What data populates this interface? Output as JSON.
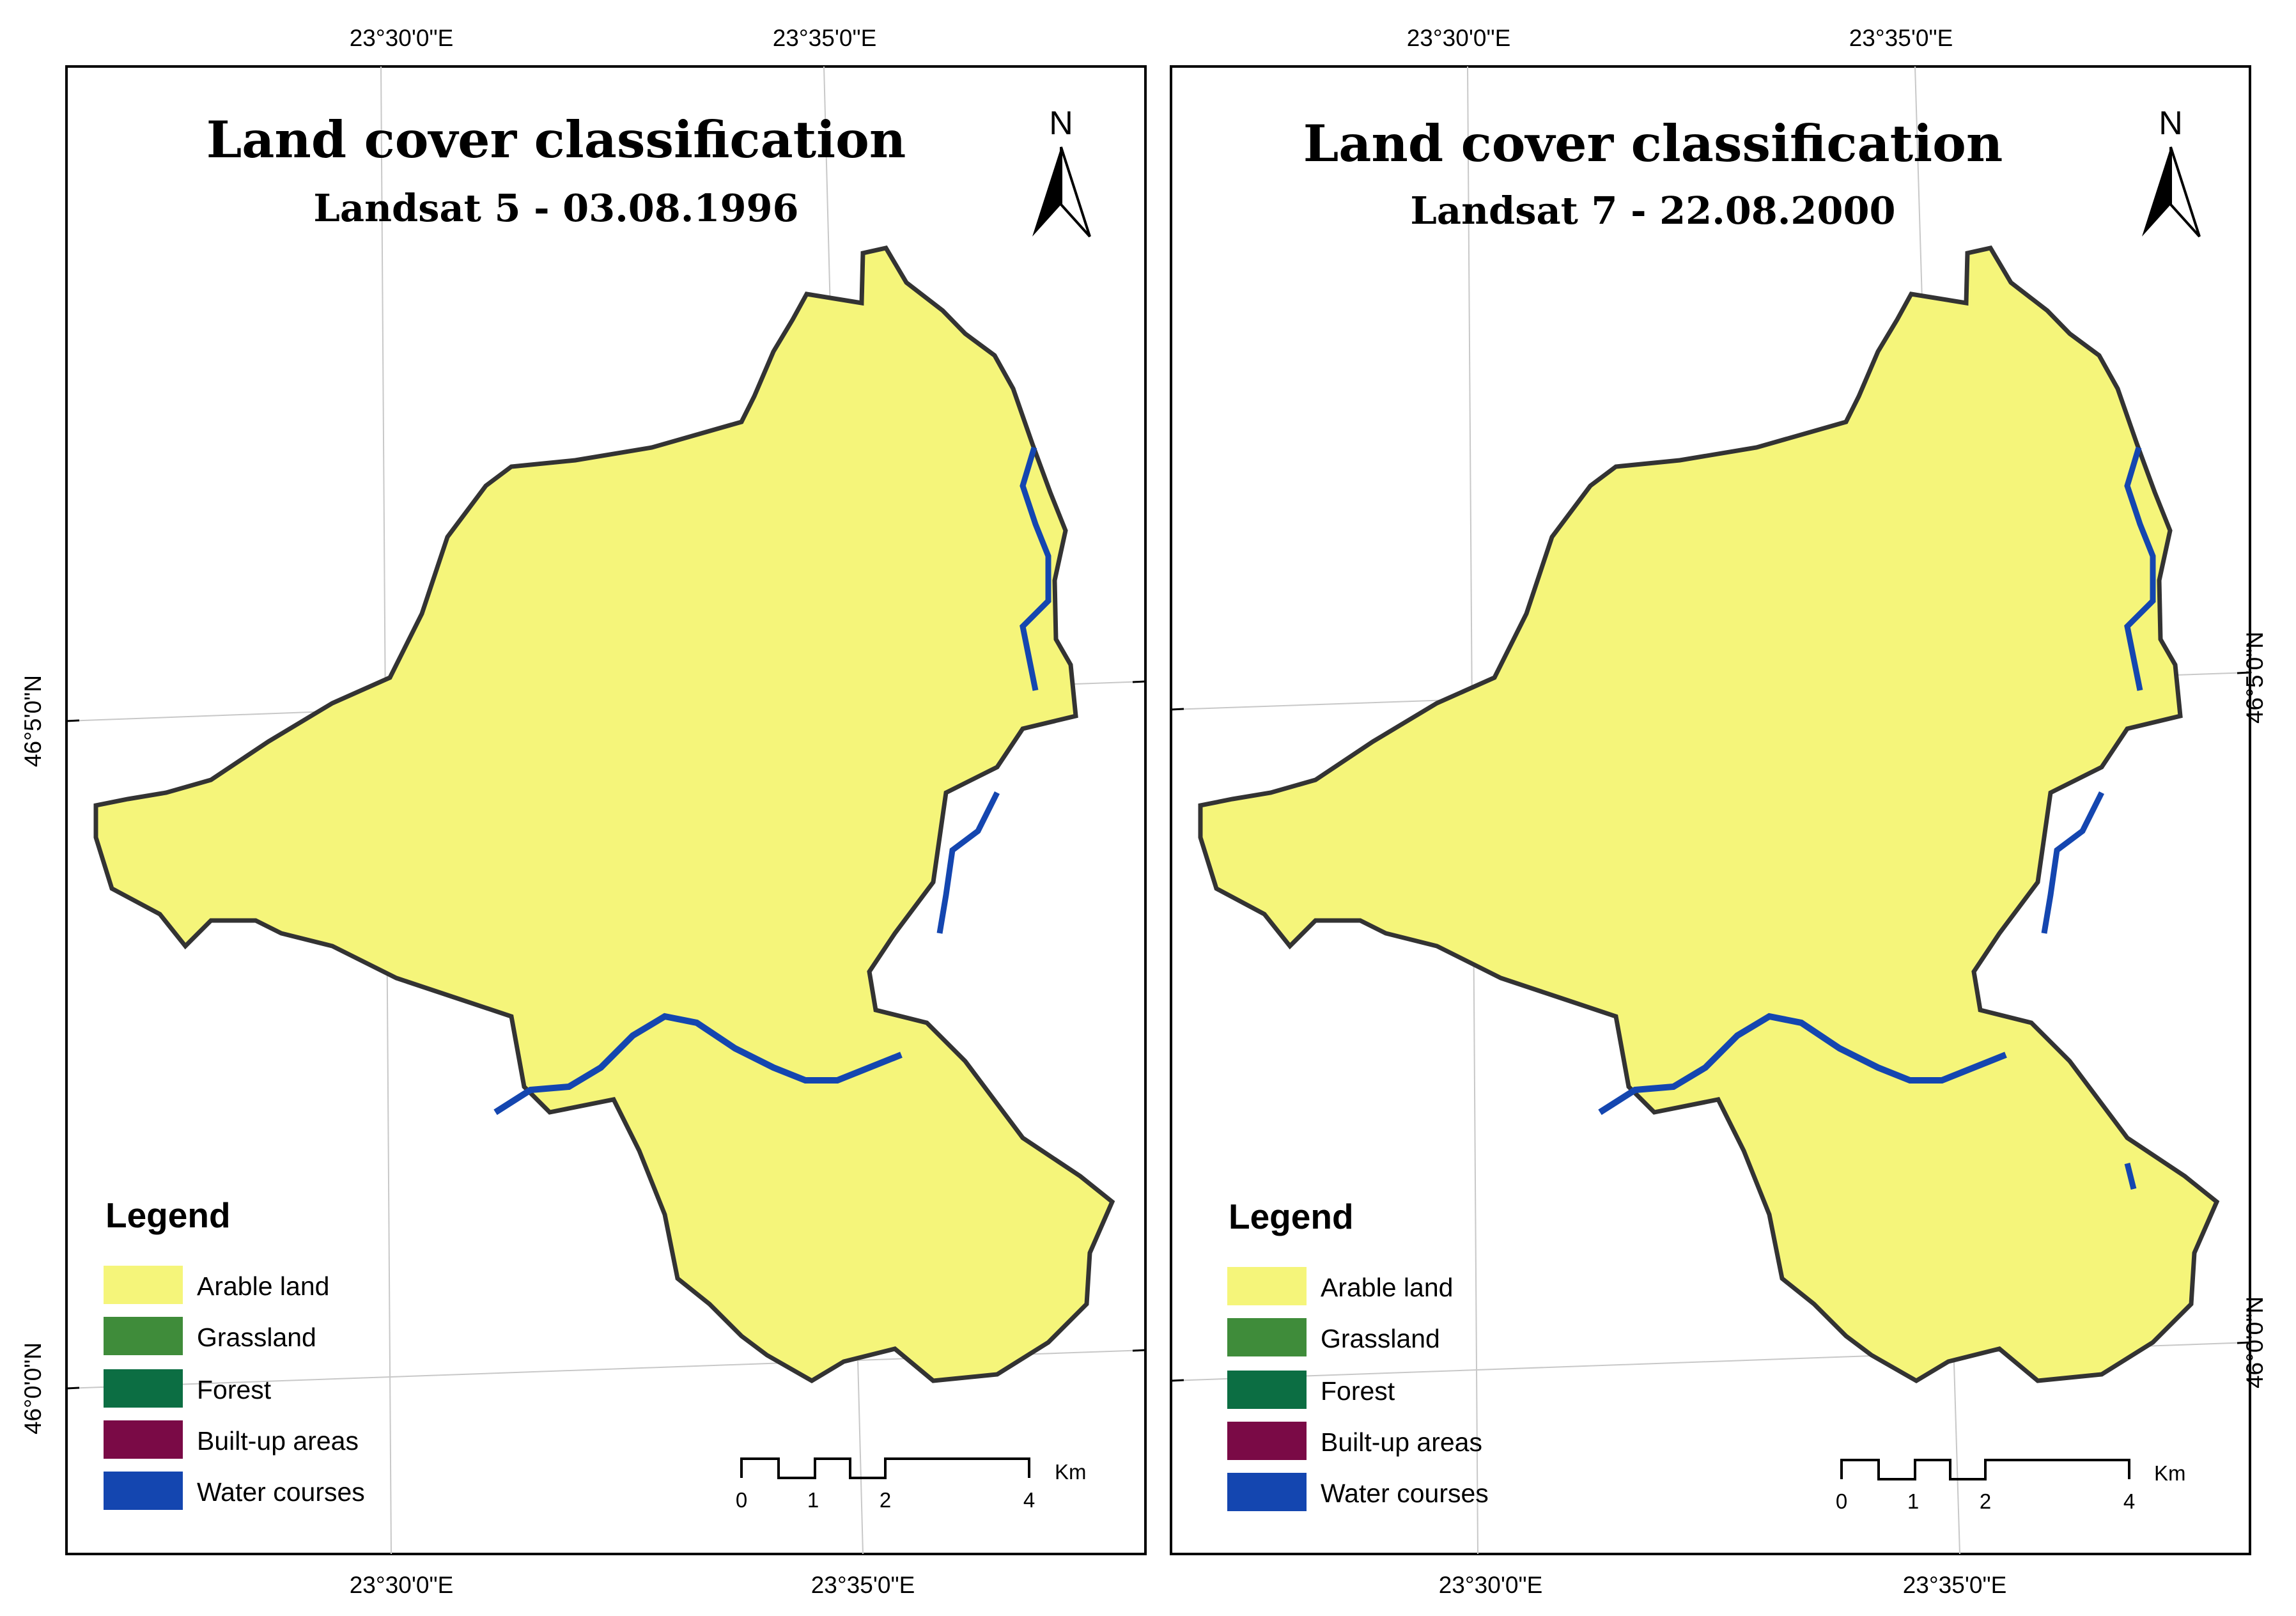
{
  "colors": {
    "arable": "#f5f57a",
    "grassland": "#3f8c3a",
    "forest": "#0c6e43",
    "builtup": "#7a0a46",
    "water": "#1446b0",
    "outline": "#333333",
    "grid": "#cccccc"
  },
  "maps": [
    {
      "title": "Land cover classification",
      "subtitle": "Landsat 5 - 03.08.1996",
      "north_label": "N",
      "icon": "north-arrow-icon",
      "coords": {
        "top": [
          "23°30'0\"E",
          "23°35'0\"E"
        ],
        "bottom": [
          "23°30'0\"E",
          "23°35'0\"E"
        ],
        "left": [
          "46°5'0\"N",
          "46°0'0\"N"
        ]
      },
      "legend": {
        "title": "Legend",
        "items": [
          {
            "label": "Arable land",
            "color": "#f5f57a"
          },
          {
            "label": "Grassland",
            "color": "#3f8c3a"
          },
          {
            "label": "Forest",
            "color": "#0c6e43"
          },
          {
            "label": "Built-up areas",
            "color": "#7a0a46"
          },
          {
            "label": "Water courses",
            "color": "#1446b0"
          }
        ]
      },
      "scale": {
        "ticks": [
          "0",
          "1",
          "2",
          "4"
        ],
        "unit": "Km"
      }
    },
    {
      "title": "Land cover classification",
      "subtitle": "Landsat 7 - 22.08.2000",
      "north_label": "N",
      "icon": "north-arrow-icon",
      "coords": {
        "top": [
          "23°30'0\"E",
          "23°35'0\"E"
        ],
        "bottom": [
          "23°30'0\"E",
          "23°35'0\"E"
        ],
        "right": [
          "46°5'0\"N",
          "46°0'0\"N"
        ]
      },
      "legend": {
        "title": "Legend",
        "items": [
          {
            "label": "Arable land",
            "color": "#f5f57a"
          },
          {
            "label": "Grassland",
            "color": "#3f8c3a"
          },
          {
            "label": "Forest",
            "color": "#0c6e43"
          },
          {
            "label": "Built-up areas",
            "color": "#7a0a46"
          },
          {
            "label": "Water courses",
            "color": "#1446b0"
          }
        ]
      },
      "scale": {
        "ticks": [
          "0",
          "1",
          "2",
          "4"
        ],
        "unit": "Km"
      }
    }
  ]
}
